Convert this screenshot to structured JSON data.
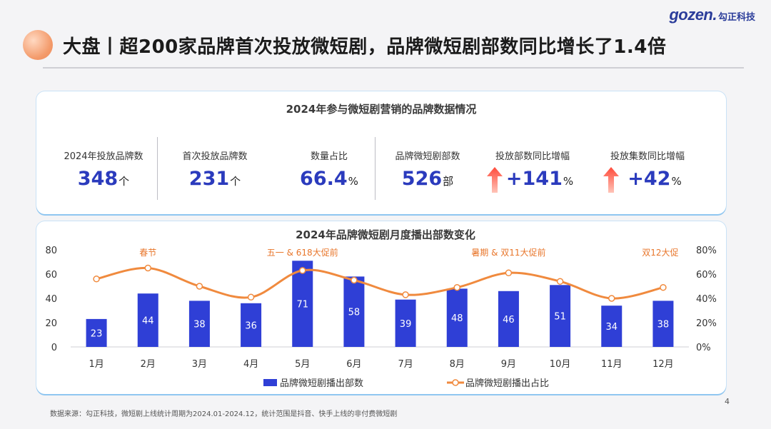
{
  "logo": {
    "word": "gozen.",
    "cn": "勾正科技"
  },
  "header": {
    "title": "大盘丨超200家品牌首次投放微短剧，品牌微短剧部数同比增长了1.4倍"
  },
  "summary": {
    "title": "2024年参与微短剧营销的品牌数据情况",
    "kpis": [
      {
        "label": "2024年投放品牌数",
        "value": "348",
        "unit": "个"
      },
      {
        "label": "首次投放品牌数",
        "value": "231",
        "unit": "个"
      },
      {
        "label": "数量占比",
        "value": "66.4",
        "unit": "%"
      },
      {
        "label": "品牌微短剧部数",
        "value": "526",
        "unit": "部"
      },
      {
        "label": "投放部数同比增幅",
        "value": "+141",
        "unit": "%"
      },
      {
        "label": "投放集数同比增幅",
        "value": "+42",
        "unit": "%"
      }
    ]
  },
  "chart_data": {
    "type": "bar",
    "title": "2024年品牌微短剧月度播出部数变化",
    "categories": [
      "1月",
      "2月",
      "3月",
      "4月",
      "5月",
      "6月",
      "7月",
      "8月",
      "9月",
      "10月",
      "11月",
      "12月"
    ],
    "series": [
      {
        "name": "品牌微短剧播出部数",
        "type": "bar",
        "axis": "left",
        "values": [
          23,
          44,
          38,
          36,
          71,
          58,
          39,
          48,
          46,
          51,
          34,
          38
        ]
      },
      {
        "name": "品牌微短剧播出占比",
        "type": "line",
        "axis": "right",
        "values": [
          56,
          65,
          50,
          41,
          63,
          55,
          43,
          49,
          61,
          54,
          40,
          49
        ]
      }
    ],
    "ylim": [
      0,
      80
    ],
    "yticks": [
      "0",
      "20",
      "40",
      "60",
      "80"
    ],
    "y2lim": [
      0,
      80
    ],
    "y2ticks": [
      "0%",
      "20%",
      "40%",
      "60%",
      "80%"
    ],
    "legend": "bottom",
    "annotations": [
      {
        "text": "春节",
        "category": "2月"
      },
      {
        "text": "五一 & 618大促前",
        "category": "5月"
      },
      {
        "text": "暑期 & 双11大促前",
        "category": "9月"
      },
      {
        "text": "双12大促",
        "category": "12月"
      }
    ],
    "colors": {
      "bar": "#2f3fd6",
      "line": "#f08a3e",
      "annotation": "#e8762b"
    }
  },
  "footer": {
    "source": "数据来源：勾正科技，微短剧上线统计周期为2024.01-2024.12，统计范围是抖音、快手上线的非付费微短剧",
    "page": "4"
  }
}
